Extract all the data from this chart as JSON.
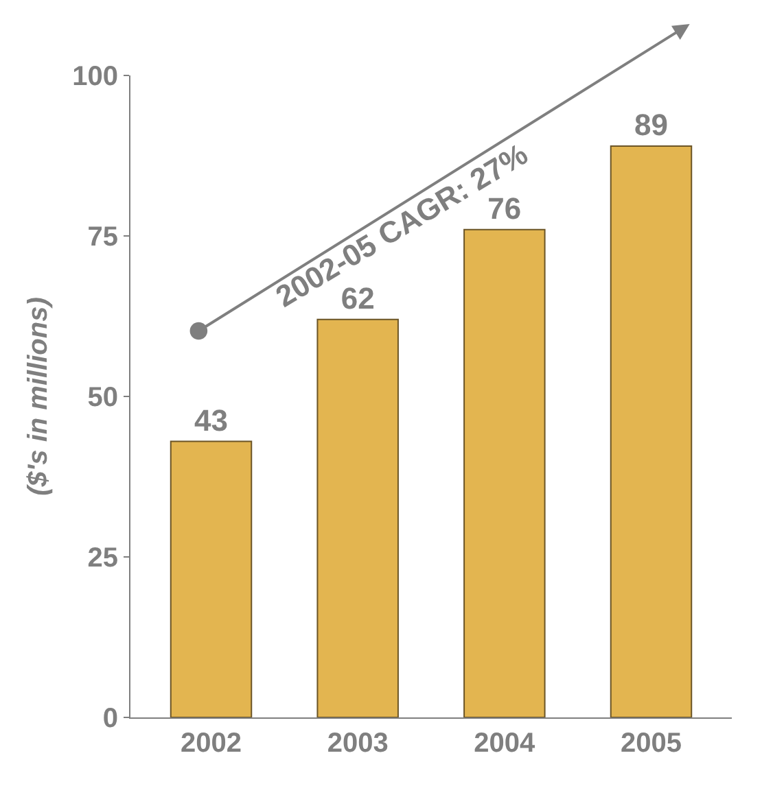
{
  "chart_data": {
    "type": "bar",
    "categories": [
      "2002",
      "2003",
      "2004",
      "2005"
    ],
    "values": [
      43,
      62,
      76,
      89
    ],
    "color": "#e3b550",
    "ylabel": "($'s in millions)",
    "ylim": [
      0,
      100
    ],
    "yticks": [
      0,
      25,
      50,
      75,
      100
    ],
    "grid": false,
    "data_labels": true,
    "annotations": [
      "2002-05 CAGR: 27%"
    ]
  }
}
